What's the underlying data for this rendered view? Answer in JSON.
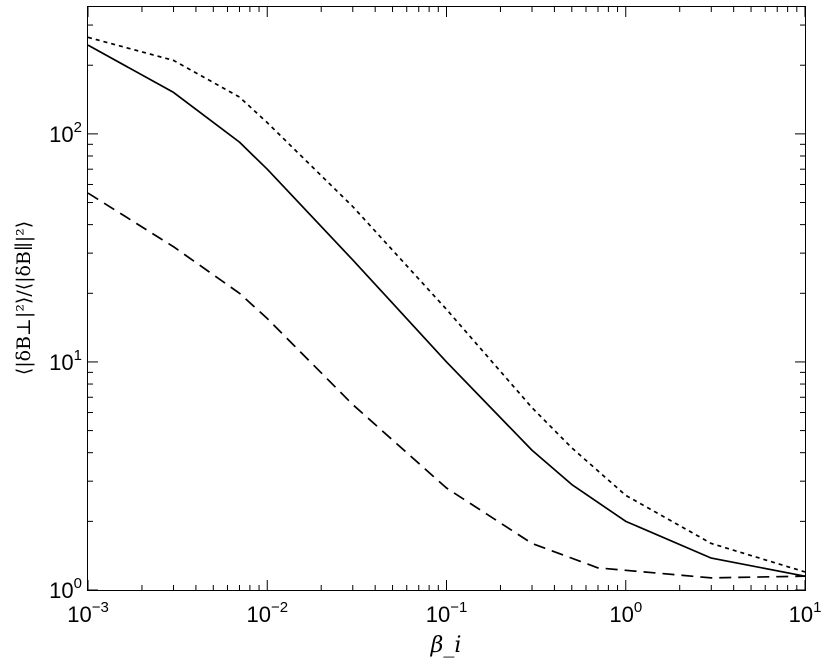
{
  "chart_data": {
    "type": "line",
    "xscale": "log",
    "yscale": "log",
    "xlim": [
      0.001,
      10
    ],
    "ylim": [
      1,
      360
    ],
    "xlabel": "β_i",
    "ylabel": "⟨|δB⊥|²⟩/⟨|δB∥|²⟩",
    "x_ticks": [
      {
        "value": 0.001,
        "base": "10",
        "exp": "−3"
      },
      {
        "value": 0.01,
        "base": "10",
        "exp": "−2"
      },
      {
        "value": 0.1,
        "base": "10",
        "exp": "−1"
      },
      {
        "value": 1,
        "base": "10",
        "exp": "0"
      },
      {
        "value": 10,
        "base": "10",
        "exp": "1"
      }
    ],
    "y_ticks": [
      {
        "value": 1,
        "base": "10",
        "exp": "0"
      },
      {
        "value": 10,
        "base": "10",
        "exp": "1"
      },
      {
        "value": 100,
        "base": "10",
        "exp": "2"
      }
    ],
    "grid": false,
    "legend": "none",
    "series": [
      {
        "style": "solid",
        "points": [
          [
            0.001,
            245
          ],
          [
            0.003,
            152
          ],
          [
            0.007,
            92
          ],
          [
            0.01,
            70
          ],
          [
            0.03,
            28
          ],
          [
            0.1,
            10
          ],
          [
            0.3,
            4.1
          ],
          [
            0.5,
            2.9
          ],
          [
            1,
            2.0
          ],
          [
            3,
            1.38
          ],
          [
            10,
            1.15
          ]
        ]
      },
      {
        "style": "dotted",
        "points": [
          [
            0.001,
            265
          ],
          [
            0.003,
            210
          ],
          [
            0.007,
            145
          ],
          [
            0.01,
            112
          ],
          [
            0.03,
            48
          ],
          [
            0.1,
            17
          ],
          [
            0.3,
            6.3
          ],
          [
            0.5,
            4.2
          ],
          [
            1,
            2.6
          ],
          [
            3,
            1.6
          ],
          [
            10,
            1.2
          ]
        ]
      },
      {
        "style": "dashed",
        "points": [
          [
            0.001,
            55
          ],
          [
            0.003,
            32
          ],
          [
            0.007,
            20
          ],
          [
            0.01,
            15.5
          ],
          [
            0.03,
            6.5
          ],
          [
            0.1,
            2.8
          ],
          [
            0.3,
            1.6
          ],
          [
            0.7,
            1.25
          ],
          [
            1,
            1.22
          ],
          [
            3,
            1.13
          ],
          [
            10,
            1.15
          ]
        ]
      }
    ]
  }
}
